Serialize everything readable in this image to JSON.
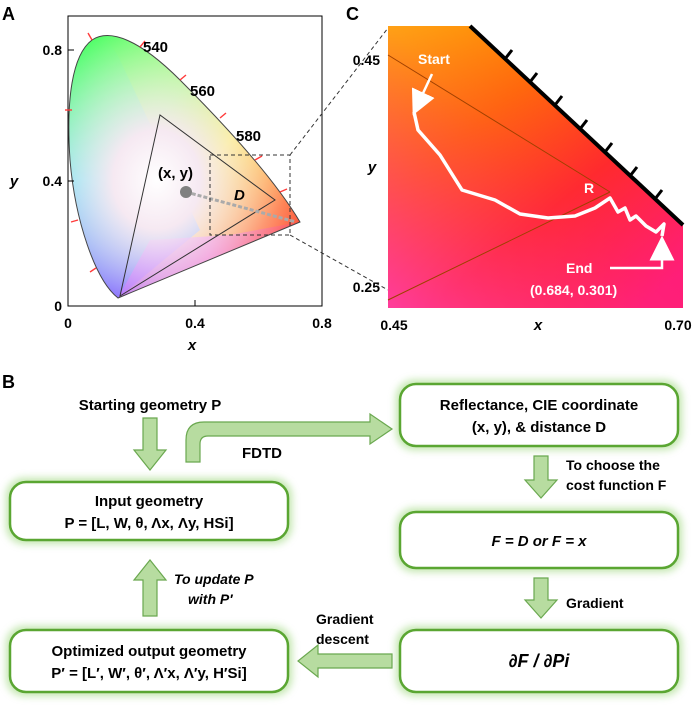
{
  "panel_a": {
    "letter": "A",
    "x_ticks": [
      "0",
      "0.4",
      "0.8"
    ],
    "y_ticks": [
      "0",
      "0.4",
      "0.8"
    ],
    "x_label": "x",
    "y_label": "y",
    "wavelength_labels": [
      "540",
      "560",
      "580"
    ],
    "point_label": "(x, y)",
    "distance_label": "D",
    "point": {
      "x": 0.36,
      "y": 0.36
    },
    "target": {
      "x": 0.72,
      "y": 0.28
    }
  },
  "panel_c": {
    "letter": "C",
    "x_ticks": [
      "0.45",
      "x",
      "0.70"
    ],
    "y_ticks": [
      "0.45",
      "y",
      "0.25"
    ],
    "start_label": "Start",
    "end_label": "End",
    "end_coords": "(0.684, 0.301)",
    "r_label": "R"
  },
  "panel_b": {
    "letter": "B",
    "starting_geometry": "Starting geometry P",
    "input_title": "Input geometry",
    "input_formula": "P = [L, W,  θ, Λx, Λy, HSi]",
    "fdtd": "FDTD",
    "reflectance_line1": "Reflectance, CIE coordinate",
    "reflectance_line2": "(x, y), & distance D",
    "choose_line1": "To choose the",
    "choose_line2": "cost function F",
    "cost_function": "F = D or F = x",
    "gradient": "Gradient",
    "derivative": "∂F / ∂Pi",
    "gd_line1": "Gradient",
    "gd_line2": "descent",
    "update_line1": "To update P",
    "update_line2": "with P′",
    "optimized_title": "Optimized output geometry",
    "optimized_formula": "P′ = [L′, W′,  θ′, Λ′x, Λ′y, H′Si]"
  }
}
